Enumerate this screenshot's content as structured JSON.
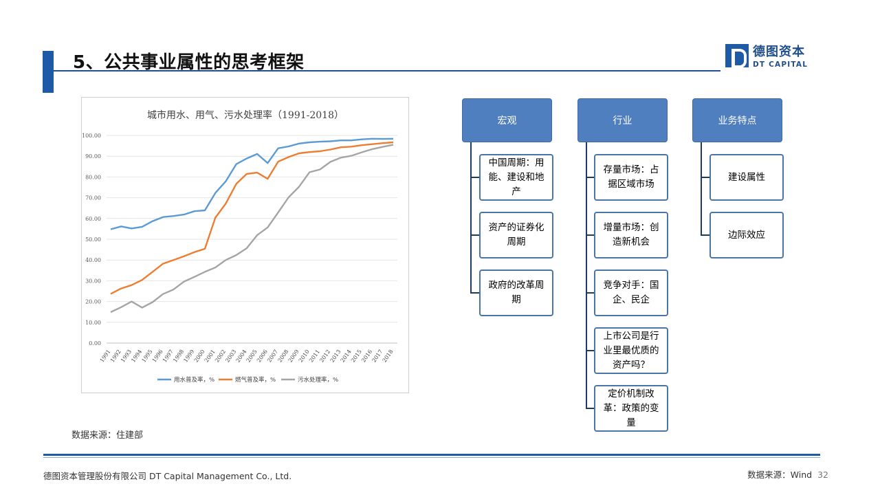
{
  "slide": {
    "title": "5、公共事业属性的思考框架",
    "logo": {
      "cn": "德图资本",
      "en": "DT CAPITAL"
    },
    "source_left": "数据来源：住建部",
    "footer_left": "德图资本管理股份有限公司  DT Capital Management Co., Ltd.",
    "footer_right": "数据来源：Wind",
    "page_number": "32"
  },
  "framework": {
    "columns": [
      {
        "header": "宏观",
        "items": [
          "中国周期：用能、建设和地产",
          "资产的证券化周期",
          "政府的改革周期"
        ]
      },
      {
        "header": "行业",
        "items": [
          "存量市场：占据区域市场",
          "增量市场：创造新机会",
          "竞争对手：国企、民企",
          "上市公司是行业里最优质的资产吗？",
          "定价机制改革：政策的变量"
        ]
      },
      {
        "header": "业务特点",
        "items": [
          "建设属性",
          "边际效应"
        ]
      }
    ]
  },
  "chart_data": {
    "type": "line",
    "title": "城市用水、用气、污水处理率（1991-2018）",
    "xlabel": "",
    "ylabel": "",
    "ylim": [
      0,
      100
    ],
    "yticks": [
      "0.00",
      "10.00",
      "20.00",
      "30.00",
      "40.00",
      "50.00",
      "60.00",
      "70.00",
      "80.00",
      "90.00",
      "100.00"
    ],
    "x": [
      "1991",
      "1992",
      "1993",
      "1994",
      "1995",
      "1996",
      "1997",
      "1998",
      "1999",
      "2000",
      "2001",
      "2002",
      "2003",
      "2004",
      "2005",
      "2006",
      "2007",
      "2008",
      "2009",
      "2010",
      "2011",
      "2012",
      "2013",
      "2014",
      "2015",
      "2016",
      "2017",
      "2018"
    ],
    "grid": true,
    "legend": "bottom",
    "series": [
      {
        "name": "用水普及率，%",
        "color": "#5b9bd5",
        "values": [
          54.8,
          56.2,
          55.2,
          56.0,
          58.7,
          60.7,
          61.2,
          61.9,
          63.5,
          63.9,
          72.3,
          77.9,
          86.2,
          88.9,
          91.1,
          86.7,
          93.8,
          94.7,
          96.1,
          96.7,
          97.0,
          97.2,
          97.6,
          97.6,
          98.1,
          98.4,
          98.3,
          98.4
        ]
      },
      {
        "name": "燃气普及率，%",
        "color": "#ed7d31",
        "values": [
          23.7,
          26.3,
          27.9,
          30.4,
          34.3,
          38.2,
          40.0,
          41.8,
          43.8,
          45.4,
          60.4,
          67.2,
          76.7,
          81.5,
          82.1,
          79.1,
          87.4,
          89.6,
          91.4,
          92.0,
          92.4,
          93.2,
          94.3,
          94.6,
          95.3,
          95.8,
          96.3,
          96.7
        ]
      },
      {
        "name": "污水处理率，%",
        "color": "#a5a5a5",
        "values": [
          14.9,
          17.3,
          20.0,
          17.1,
          19.7,
          23.6,
          25.8,
          29.6,
          31.9,
          34.3,
          36.4,
          40.0,
          42.4,
          45.7,
          52.0,
          55.7,
          62.9,
          70.2,
          75.3,
          82.3,
          83.6,
          87.3,
          89.3,
          90.2,
          91.9,
          93.4,
          94.5,
          95.5
        ]
      }
    ]
  }
}
